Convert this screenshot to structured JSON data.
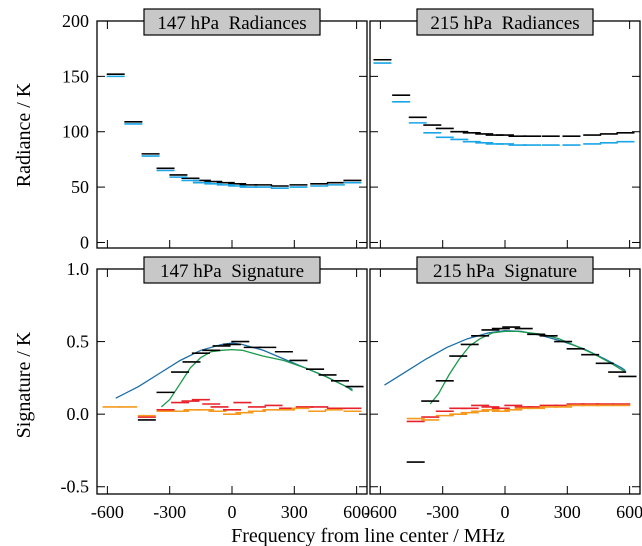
{
  "figure": {
    "x_label": "Frequency from line center / MHz",
    "top_y_label": "Radiance / K",
    "bottom_y_label": "Signature / K"
  },
  "colors": {
    "black": "#000000",
    "cyan": "#1aa5e6",
    "blue_line": "#1b6fa8",
    "green_line": "#1a9a4a",
    "red": "#e8202a",
    "orange": "#f39a1f",
    "title_box": "#c8c8c8"
  },
  "chart_data": [
    {
      "type": "scatter",
      "title": "147 hPa  Radiances",
      "xlim": [
        -650,
        650
      ],
      "ylim": [
        -5,
        200
      ],
      "x_ticks": [
        -600,
        -300,
        0,
        300,
        600
      ],
      "y_ticks": [
        0,
        50,
        100,
        150,
        200
      ],
      "series": [
        {
          "color_key": "black",
          "style": "dash",
          "points": [
            [
              -560,
              152
            ],
            [
              -475,
              109
            ],
            [
              -392,
              80
            ],
            [
              -320,
              67
            ],
            [
              -258,
              61
            ],
            [
              -200,
              58
            ],
            [
              -145,
              56
            ],
            [
              -90,
              55
            ],
            [
              -30,
              54
            ],
            [
              25,
              53
            ],
            [
              80,
              52
            ],
            [
              150,
              52
            ],
            [
              230,
              51
            ],
            [
              320,
              52
            ],
            [
              420,
              53
            ],
            [
              500,
              54
            ],
            [
              580,
              56
            ]
          ]
        },
        {
          "color_key": "cyan",
          "style": "dash",
          "points": [
            [
              -560,
              150
            ],
            [
              -475,
              107
            ],
            [
              -392,
              78
            ],
            [
              -320,
              65
            ],
            [
              -258,
              59
            ],
            [
              -200,
              56
            ],
            [
              -145,
              54
            ],
            [
              -90,
              53
            ],
            [
              -30,
              52
            ],
            [
              25,
              51
            ],
            [
              80,
              50
            ],
            [
              150,
              50
            ],
            [
              230,
              49
            ],
            [
              320,
              50
            ],
            [
              420,
              51
            ],
            [
              500,
              52
            ],
            [
              580,
              54
            ]
          ]
        }
      ]
    },
    {
      "type": "scatter",
      "title": "215 hPa  Radiances",
      "xlim": [
        -650,
        650
      ],
      "ylim": [
        -5,
        200
      ],
      "x_ticks": [
        -600,
        -300,
        0,
        300,
        600
      ],
      "y_ticks": [],
      "series": [
        {
          "color_key": "black",
          "style": "dash",
          "points": [
            [
              -590,
              165
            ],
            [
              -500,
              133
            ],
            [
              -420,
              113
            ],
            [
              -350,
              106
            ],
            [
              -290,
              103
            ],
            [
              -220,
              100
            ],
            [
              -160,
              99
            ],
            [
              -100,
              98
            ],
            [
              -50,
              97
            ],
            [
              0,
              97
            ],
            [
              60,
              96
            ],
            [
              130,
              96
            ],
            [
              220,
              96
            ],
            [
              320,
              96
            ],
            [
              420,
              97
            ],
            [
              500,
              98
            ],
            [
              580,
              99
            ]
          ]
        },
        {
          "color_key": "cyan",
          "style": "dash",
          "points": [
            [
              -590,
              162
            ],
            [
              -500,
              127
            ],
            [
              -420,
              108
            ],
            [
              -350,
              99
            ],
            [
              -290,
              95
            ],
            [
              -220,
              93
            ],
            [
              -160,
              91
            ],
            [
              -100,
              90
            ],
            [
              -50,
              89
            ],
            [
              0,
              89
            ],
            [
              60,
              88
            ],
            [
              130,
              88
            ],
            [
              220,
              88
            ],
            [
              320,
              88
            ],
            [
              420,
              89
            ],
            [
              500,
              90
            ],
            [
              580,
              91
            ]
          ]
        }
      ]
    },
    {
      "type": "line",
      "title": "147 hPa  Signature",
      "xlim": [
        -650,
        650
      ],
      "ylim": [
        -0.55,
        1.0
      ],
      "x_ticks": [
        -600,
        -300,
        0,
        300,
        600
      ],
      "x_tick_labels": [
        "-600",
        "-300",
        "0",
        "300",
        "600"
      ],
      "y_ticks": [
        -0.5,
        0.0,
        0.5,
        1.0
      ],
      "y_tick_labels": [
        "-0.5",
        "0.0",
        "0.5",
        "1.0"
      ],
      "series": [
        {
          "color_key": "blue_line",
          "style": "line",
          "points": [
            [
              -560,
              0.11
            ],
            [
              -450,
              0.19
            ],
            [
              -350,
              0.28
            ],
            [
              -250,
              0.37
            ],
            [
              -150,
              0.44
            ],
            [
              -50,
              0.48
            ],
            [
              0,
              0.49
            ],
            [
              50,
              0.48
            ],
            [
              150,
              0.44
            ],
            [
              250,
              0.38
            ],
            [
              350,
              0.32
            ],
            [
              450,
              0.26
            ],
            [
              550,
              0.19
            ],
            [
              580,
              0.17
            ]
          ]
        },
        {
          "color_key": "green_line",
          "style": "line",
          "points": [
            [
              -340,
              0.05
            ],
            [
              -300,
              0.1
            ],
            [
              -250,
              0.21
            ],
            [
              -200,
              0.32
            ],
            [
              -150,
              0.39
            ],
            [
              -100,
              0.43
            ],
            [
              -50,
              0.44
            ],
            [
              0,
              0.445
            ],
            [
              50,
              0.44
            ],
            [
              100,
              0.42
            ],
            [
              150,
              0.4
            ],
            [
              250,
              0.37
            ],
            [
              350,
              0.32
            ],
            [
              450,
              0.26
            ],
            [
              550,
              0.19
            ],
            [
              580,
              0.16
            ]
          ]
        },
        {
          "color_key": "black",
          "style": "dash",
          "points": [
            [
              -410,
              -0.04
            ],
            [
              -320,
              0.15
            ],
            [
              -250,
              0.29
            ],
            [
              -195,
              0.36
            ],
            [
              -150,
              0.42
            ],
            [
              -100,
              0.44
            ],
            [
              -50,
              0.47
            ],
            [
              0,
              0.48
            ],
            [
              40,
              0.5
            ],
            [
              100,
              0.46
            ],
            [
              170,
              0.46
            ],
            [
              250,
              0.43
            ],
            [
              320,
              0.37
            ],
            [
              400,
              0.31
            ],
            [
              460,
              0.27
            ],
            [
              520,
              0.23
            ],
            [
              590,
              0.19
            ]
          ]
        },
        {
          "color_key": "red",
          "style": "dash",
          "points": [
            [
              -410,
              -0.02
            ],
            [
              -320,
              0.03
            ],
            [
              -250,
              0.08
            ],
            [
              -200,
              0.09
            ],
            [
              -150,
              0.1
            ],
            [
              -100,
              0.07
            ],
            [
              -60,
              0.05
            ],
            [
              0,
              0.03
            ],
            [
              50,
              0.08
            ],
            [
              120,
              0.05
            ],
            [
              200,
              0.06
            ],
            [
              270,
              0.04
            ],
            [
              350,
              0.05
            ],
            [
              420,
              0.05
            ],
            [
              500,
              0.04
            ],
            [
              580,
              0.04
            ]
          ]
        },
        {
          "color_key": "orange",
          "style": "dash",
          "points": [
            [
              -580,
              0.05
            ],
            [
              -500,
              0.05
            ],
            [
              -410,
              -0.01
            ],
            [
              -320,
              0.02
            ],
            [
              -250,
              0.02
            ],
            [
              -190,
              0.03
            ],
            [
              -130,
              0.03
            ],
            [
              -70,
              0.02
            ],
            [
              0,
              0.0
            ],
            [
              60,
              0.01
            ],
            [
              120,
              0.02
            ],
            [
              190,
              0.03
            ],
            [
              260,
              0.03
            ],
            [
              330,
              0.04
            ],
            [
              410,
              0.02
            ],
            [
              490,
              0.03
            ],
            [
              580,
              0.02
            ]
          ]
        }
      ]
    },
    {
      "type": "line",
      "title": "215 hPa  Signature",
      "xlim": [
        -650,
        650
      ],
      "ylim": [
        -0.55,
        1.0
      ],
      "x_ticks": [
        -600,
        -300,
        0,
        300,
        600
      ],
      "x_tick_labels": [
        "-600",
        "-300",
        "0",
        "300",
        "600"
      ],
      "y_ticks": [],
      "series": [
        {
          "color_key": "blue_line",
          "style": "line",
          "points": [
            [
              -580,
              0.2
            ],
            [
              -480,
              0.29
            ],
            [
              -380,
              0.38
            ],
            [
              -280,
              0.46
            ],
            [
              -180,
              0.52
            ],
            [
              -80,
              0.56
            ],
            [
              0,
              0.575
            ],
            [
              80,
              0.57
            ],
            [
              180,
              0.54
            ],
            [
              280,
              0.5
            ],
            [
              380,
              0.45
            ],
            [
              480,
              0.38
            ],
            [
              560,
              0.32
            ],
            [
              580,
              0.3
            ]
          ]
        },
        {
          "color_key": "green_line",
          "style": "line",
          "points": [
            [
              -360,
              0.07
            ],
            [
              -320,
              0.14
            ],
            [
              -270,
              0.27
            ],
            [
              -220,
              0.38
            ],
            [
              -170,
              0.47
            ],
            [
              -120,
              0.52
            ],
            [
              -60,
              0.56
            ],
            [
              0,
              0.57
            ],
            [
              60,
              0.57
            ],
            [
              120,
              0.56
            ],
            [
              180,
              0.55
            ],
            [
              260,
              0.52
            ],
            [
              340,
              0.47
            ],
            [
              420,
              0.42
            ],
            [
              500,
              0.36
            ],
            [
              580,
              0.29
            ]
          ]
        },
        {
          "color_key": "black",
          "style": "dash",
          "points": [
            [
              -430,
              -0.33
            ],
            [
              -360,
              0.09
            ],
            [
              -290,
              0.23
            ],
            [
              -225,
              0.4
            ],
            [
              -170,
              0.48
            ],
            [
              -120,
              0.54
            ],
            [
              -70,
              0.58
            ],
            [
              -20,
              0.59
            ],
            [
              30,
              0.6
            ],
            [
              90,
              0.59
            ],
            [
              150,
              0.55
            ],
            [
              210,
              0.54
            ],
            [
              280,
              0.5
            ],
            [
              340,
              0.45
            ],
            [
              410,
              0.41
            ],
            [
              480,
              0.35
            ],
            [
              540,
              0.29
            ],
            [
              590,
              0.26
            ]
          ]
        },
        {
          "color_key": "red",
          "style": "dash",
          "points": [
            [
              -430,
              -0.05
            ],
            [
              -360,
              -0.02
            ],
            [
              -290,
              0.02
            ],
            [
              -225,
              0.04
            ],
            [
              -170,
              0.04
            ],
            [
              -120,
              0.06
            ],
            [
              -70,
              0.05
            ],
            [
              -20,
              0.04
            ],
            [
              40,
              0.06
            ],
            [
              90,
              0.05
            ],
            [
              150,
              0.05
            ],
            [
              210,
              0.06
            ],
            [
              280,
              0.06
            ],
            [
              340,
              0.07
            ],
            [
              410,
              0.07
            ],
            [
              480,
              0.07
            ],
            [
              560,
              0.07
            ]
          ]
        },
        {
          "color_key": "orange",
          "style": "dash",
          "points": [
            [
              -430,
              -0.03
            ],
            [
              -360,
              -0.04
            ],
            [
              -290,
              -0.01
            ],
            [
              -225,
              0.0
            ],
            [
              -170,
              0.01
            ],
            [
              -120,
              0.02
            ],
            [
              -70,
              0.03
            ],
            [
              -20,
              0.02
            ],
            [
              40,
              0.03
            ],
            [
              90,
              0.04
            ],
            [
              150,
              0.04
            ],
            [
              210,
              0.05
            ],
            [
              280,
              0.05
            ],
            [
              340,
              0.06
            ],
            [
              410,
              0.06
            ],
            [
              480,
              0.06
            ],
            [
              560,
              0.06
            ]
          ]
        }
      ]
    }
  ]
}
